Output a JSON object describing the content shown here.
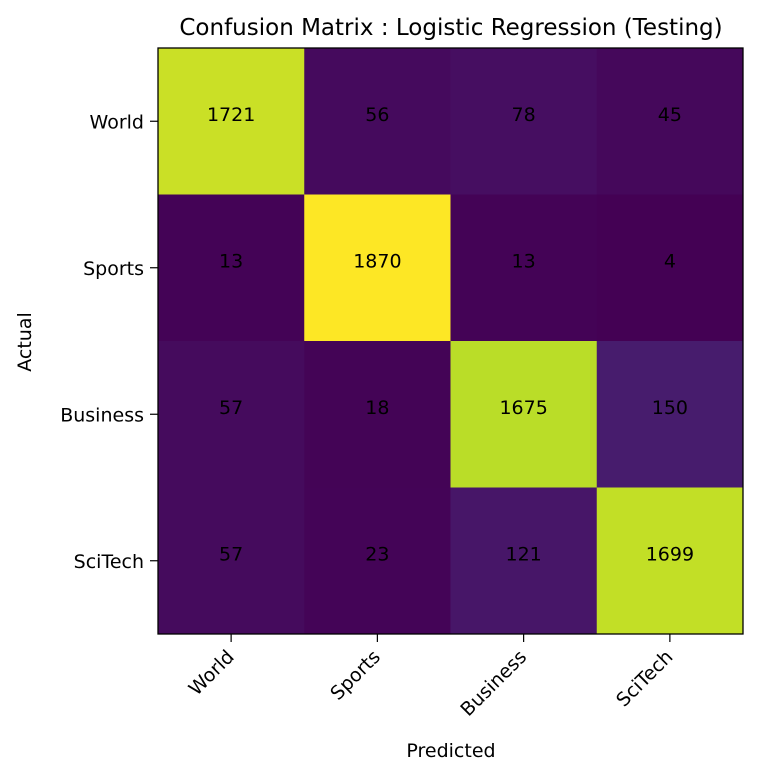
{
  "chart_data": {
    "type": "heatmap",
    "title": "Confusion Matrix : Logistic Regression (Testing)",
    "xlabel": "Predicted",
    "ylabel": "Actual",
    "x_categories": [
      "World",
      "Sports",
      "Business",
      "SciTech"
    ],
    "y_categories": [
      "World",
      "Sports",
      "Business",
      "SciTech"
    ],
    "matrix": [
      [
        1721,
        56,
        78,
        45
      ],
      [
        13,
        1870,
        13,
        4
      ],
      [
        57,
        18,
        1675,
        150
      ],
      [
        57,
        23,
        121,
        1699
      ]
    ],
    "colormap": "viridis",
    "value_range": [
      4,
      1870
    ],
    "grid": false,
    "legend": "none"
  }
}
